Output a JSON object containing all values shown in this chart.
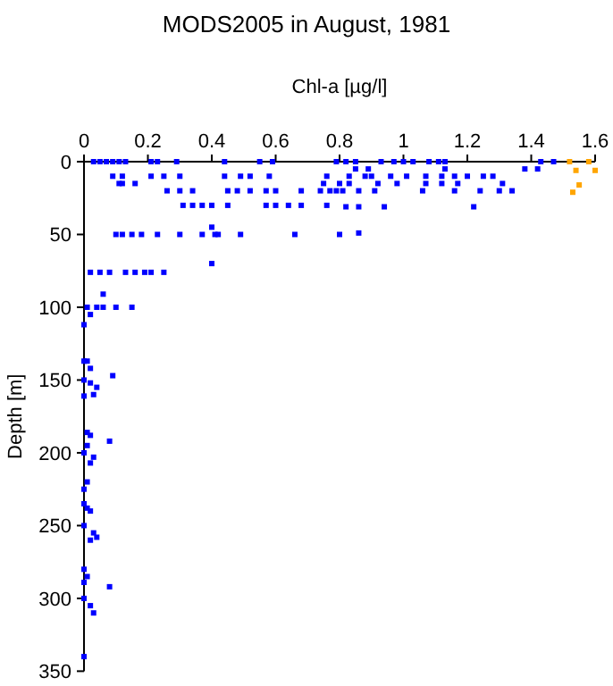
{
  "chart_data": {
    "type": "scatter",
    "title": "MODS2005 in August, 1981",
    "xlabel": "Chl-a [µg/l]",
    "ylabel": "Depth [m]",
    "xlim": [
      0,
      1.6
    ],
    "xticks": [
      0,
      0.2,
      0.4,
      0.6,
      0.8,
      1,
      1.2,
      1.4,
      1.6
    ],
    "ylim": [
      350,
      0
    ],
    "yticks": [
      0,
      50,
      100,
      150,
      200,
      250,
      300,
      350
    ],
    "marker": "square",
    "grid": false,
    "series": [
      {
        "color": "#0000ff",
        "x": [
          0.03,
          0.05,
          0.07,
          0.09,
          0.11,
          0.13,
          0.21,
          0.23,
          0.29,
          0.44,
          0.55,
          0.59,
          0.79,
          0.82,
          0.85,
          0.93,
          0.97,
          1.0,
          1.03,
          1.08,
          1.11,
          1.13,
          1.43,
          1.47,
          0.85,
          0.89,
          1.13,
          1.38,
          1.42,
          0.09,
          0.12,
          0.21,
          0.25,
          0.3,
          0.44,
          0.49,
          0.52,
          0.58,
          0.76,
          0.83,
          0.88,
          0.9,
          0.96,
          1.01,
          1.07,
          1.12,
          1.16,
          1.2,
          1.25,
          1.28,
          0.11,
          0.12,
          0.16,
          0.75,
          0.8,
          0.83,
          0.92,
          0.98,
          1.07,
          1.12,
          1.17,
          1.31,
          0.26,
          0.3,
          0.34,
          0.45,
          0.48,
          0.52,
          0.57,
          0.6,
          0.68,
          0.74,
          0.77,
          0.79,
          0.81,
          0.86,
          0.91,
          1.06,
          1.16,
          1.24,
          1.3,
          1.34,
          0.31,
          0.34,
          0.37,
          0.4,
          0.45,
          0.57,
          0.6,
          0.64,
          0.68,
          0.76,
          0.82,
          0.86,
          0.94,
          1.22,
          0.4,
          0.1,
          0.12,
          0.15,
          0.18,
          0.23,
          0.3,
          0.37,
          0.41,
          0.42,
          0.49,
          0.66,
          0.8,
          0.86,
          0.4,
          0.02,
          0.05,
          0.08,
          0.13,
          0.16,
          0.19,
          0.21,
          0.25,
          0.06,
          0.01,
          0.04,
          0.06,
          0.1,
          0.15,
          0.02,
          0,
          0,
          0.01,
          0.02,
          0.09,
          0,
          0.02,
          0.04,
          0.03,
          0,
          0.01,
          0.02,
          0.08,
          0.01,
          0,
          0.03,
          0.02,
          0.01,
          0,
          0,
          0.01,
          0.02,
          0,
          0.03,
          0.04,
          0.02,
          0,
          0.01,
          0,
          0.08,
          0,
          0.02,
          0.03,
          0
        ],
        "values": [
          0,
          0,
          0,
          0,
          0,
          0,
          0,
          0,
          0,
          0,
          0,
          0,
          0,
          0,
          0,
          0,
          0,
          0,
          0,
          0,
          0,
          0,
          0,
          0,
          5,
          5,
          5,
          5,
          5,
          10,
          10,
          10,
          10,
          10,
          10,
          10,
          10,
          10,
          10,
          10,
          10,
          10,
          10,
          10,
          10,
          10,
          10,
          10,
          10,
          10,
          15,
          15,
          15,
          15,
          15,
          15,
          15,
          15,
          15,
          15,
          15,
          15,
          20,
          20,
          20,
          20,
          20,
          20,
          20,
          20,
          20,
          20,
          20,
          20,
          20,
          20,
          20,
          20,
          20,
          20,
          20,
          20,
          30,
          30,
          30,
          30,
          30,
          30,
          30,
          30,
          30,
          30,
          31,
          31,
          31,
          31,
          45,
          50,
          50,
          50,
          50,
          50,
          50,
          50,
          50,
          50,
          50,
          50,
          50,
          49,
          70,
          76,
          76,
          76,
          76,
          76,
          76,
          76,
          76,
          91,
          100,
          100,
          100,
          100,
          100,
          105,
          112,
          137,
          137,
          142,
          147,
          150,
          152,
          155,
          160,
          161,
          186,
          188,
          192,
          195,
          200,
          203,
          207,
          220,
          225,
          235,
          238,
          240,
          250,
          255,
          258,
          260,
          280,
          285,
          289,
          292,
          300,
          305,
          310,
          340
        ]
      },
      {
        "color": "#ffa500",
        "x": [
          1.52,
          1.58,
          1.54,
          1.6,
          1.55,
          1.53
        ],
        "values": [
          0,
          0,
          6,
          6,
          16,
          21
        ]
      }
    ]
  }
}
